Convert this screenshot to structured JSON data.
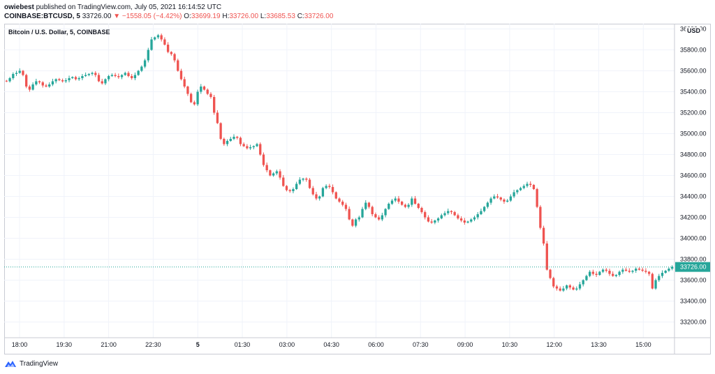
{
  "header": {
    "user": "owiebest",
    "published": "published on TradingView.com, July 05, 2021 16:14:52 UTC",
    "symbol": "COINBASE:BTCUSD, 5",
    "price": "33726.00",
    "arrow": "▼",
    "change": "−1558.05 (−4.42%)",
    "o_label": "O:",
    "o_value": "33699.19",
    "h_label": "H:",
    "h_value": "33726.00",
    "l_label": "L:",
    "l_value": "33685.53",
    "c_label": "C:",
    "c_value": "33726.00"
  },
  "legend_title": "Bitcoin / U.S. Dollar, 5, COINBASE",
  "currency_badge": "USD",
  "footer": {
    "brand": "TradingView"
  },
  "colors": {
    "up": "#26a69a",
    "down": "#ef5350",
    "grid": "#f0f3fa",
    "text": "#131722"
  },
  "chart_data": {
    "type": "candlestick",
    "title": "Bitcoin / U.S. Dollar, 5, COINBASE",
    "ylim": [
      33050,
      36050
    ],
    "y_ticks": [
      "36000.00",
      "35800.00",
      "35600.00",
      "35400.00",
      "35200.00",
      "35000.00",
      "34800.00",
      "34600.00",
      "34400.00",
      "34200.00",
      "34000.00",
      "33800.00",
      "33600.00",
      "33400.00",
      "33200.00"
    ],
    "x_ticks": [
      "18:00",
      "19:30",
      "21:00",
      "22:30",
      "5",
      "01:30",
      "03:00",
      "04:30",
      "06:00",
      "07:30",
      "09:00",
      "10:30",
      "12:00",
      "13:30",
      "15:00"
    ],
    "last_price": 33726,
    "last_price_label": "33726.00",
    "grid": true,
    "closes": [
      35500,
      35530,
      35570,
      35580,
      35600,
      35560,
      35450,
      35420,
      35470,
      35500,
      35490,
      35460,
      35450,
      35470,
      35500,
      35520,
      35510,
      35500,
      35510,
      35530,
      35540,
      35520,
      35530,
      35550,
      35560,
      35570,
      35580,
      35560,
      35500,
      35480,
      35520,
      35550,
      35560,
      35550,
      35540,
      35560,
      35580,
      35550,
      35530,
      35560,
      35600,
      35640,
      35700,
      35800,
      35900,
      35920,
      35940,
      35900,
      35850,
      35780,
      35760,
      35700,
      35600,
      35520,
      35450,
      35380,
      35300,
      35280,
      35400,
      35450,
      35420,
      35380,
      35350,
      35200,
      35100,
      34950,
      34900,
      34930,
      34950,
      34970,
      34960,
      34900,
      34880,
      34860,
      34870,
      34880,
      34900,
      34800,
      34700,
      34650,
      34600,
      34620,
      34640,
      34580,
      34500,
      34460,
      34450,
      34470,
      34520,
      34560,
      34570,
      34560,
      34480,
      34420,
      34380,
      34400,
      34480,
      34500,
      34490,
      34440,
      34380,
      34350,
      34320,
      34280,
      34180,
      34120,
      34180,
      34200,
      34280,
      34340,
      34300,
      34230,
      34200,
      34180,
      34220,
      34280,
      34330,
      34360,
      34380,
      34350,
      34320,
      34300,
      34320,
      34380,
      34330,
      34290,
      34250,
      34200,
      34160,
      34150,
      34170,
      34190,
      34220,
      34240,
      34260,
      34250,
      34220,
      34190,
      34170,
      34150,
      34160,
      34180,
      34200,
      34230,
      34260,
      34300,
      34340,
      34380,
      34400,
      34390,
      34370,
      34350,
      34360,
      34400,
      34440,
      34460,
      34480,
      34500,
      34520,
      34510,
      34470,
      34300,
      34100,
      33950,
      33700,
      33620,
      33540,
      33520,
      33500,
      33520,
      33550,
      33530,
      33510,
      33520,
      33560,
      33600,
      33640,
      33680,
      33660,
      33650,
      33680,
      33700,
      33690,
      33660,
      33640,
      33650,
      33680,
      33700,
      33690,
      33680,
      33690,
      33710,
      33700,
      33690,
      33680,
      33660,
      33520,
      33600,
      33640,
      33670,
      33690,
      33710,
      33726
    ]
  }
}
